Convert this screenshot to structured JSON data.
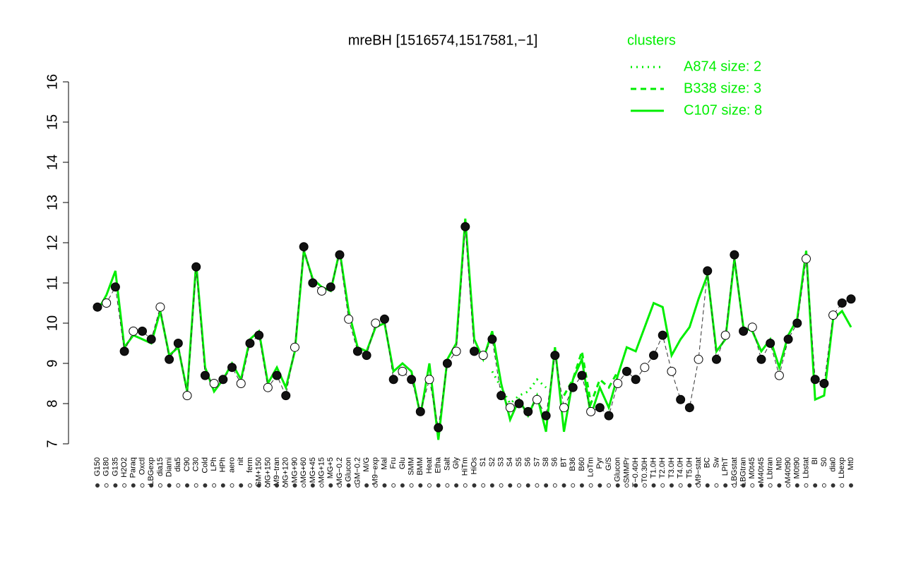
{
  "chart_data": {
    "type": "line",
    "title": "mreBH [1516574,1517581,−1]",
    "legend_title": "clusters",
    "categories": [
      "G150",
      "G180",
      "G135",
      "H2O2",
      "Paraq",
      "Oxctl",
      "LBGexp",
      "dia15",
      "Diami",
      "dia5",
      "C90",
      "C30",
      "Cold",
      "LPh",
      "HPh",
      "aero",
      "nit",
      "ferm",
      "GM+150",
      "MG+150",
      "M9−tran",
      "MG+120",
      "MG+90",
      "MG+60",
      "MG+45",
      "MG+15",
      "MG+5",
      "MG−0.2",
      "Glucon",
      "GM−0.2",
      "M/G",
      "M9−exp",
      "Mal",
      "Fru",
      "Glu",
      "SMM",
      "BMM",
      "Heat",
      "Etha",
      "Salt",
      "Gly",
      "HiTm",
      "HiOs",
      "S1",
      "S2",
      "S3",
      "S4",
      "S5",
      "S6",
      "S7",
      "S8",
      "S6",
      "BT",
      "B36",
      "B60",
      "LoTm",
      "Pyr",
      "G/S",
      "Glucon",
      "SMMPr",
      "T−0.40H",
      "T0.30H",
      "T1.0H",
      "T2.0H",
      "T3.0H",
      "T4.0H",
      "T5.0H",
      "M9−stat",
      "BC",
      "Sw",
      "LPhT",
      "LBGstat",
      "LBGtran",
      "M0t45",
      "M40t45",
      "Lbtran",
      "Mt0",
      "M40t90",
      "M0t90",
      "Lbstat",
      "BI",
      "S0",
      "dia0",
      "Lbexp",
      "Mt0"
    ],
    "values": [
      10.4,
      10.5,
      10.9,
      9.3,
      9.8,
      9.8,
      9.6,
      10.4,
      9.1,
      9.5,
      8.2,
      11.4,
      8.7,
      8.5,
      8.6,
      8.9,
      8.5,
      9.5,
      9.7,
      8.4,
      8.7,
      8.2,
      9.4,
      11.9,
      11.0,
      10.8,
      10.9,
      11.7,
      10.1,
      9.3,
      9.2,
      10.0,
      10.1,
      8.6,
      8.8,
      8.6,
      7.8,
      8.6,
      7.4,
      9.0,
      9.3,
      12.4,
      9.3,
      9.2,
      9.6,
      8.2,
      7.9,
      8.0,
      7.8,
      8.1,
      7.7,
      9.2,
      7.9,
      8.4,
      8.7,
      7.8,
      7.9,
      7.7,
      8.5,
      8.8,
      8.6,
      8.9,
      9.2,
      9.7,
      8.8,
      8.1,
      7.9,
      9.1,
      11.3,
      9.1,
      9.7,
      11.7,
      9.8,
      9.9,
      9.1,
      9.5,
      8.7,
      9.6,
      10.0,
      11.6,
      8.6,
      8.5,
      10.2,
      10.5,
      10.6
    ],
    "series": [
      {
        "name": "A874 size: 2",
        "color": "#00ee00",
        "dash": "dotted",
        "values": [
          null,
          null,
          null,
          null,
          null,
          null,
          null,
          null,
          null,
          null,
          null,
          null,
          null,
          null,
          null,
          null,
          null,
          null,
          null,
          null,
          null,
          null,
          null,
          null,
          null,
          null,
          null,
          null,
          null,
          null,
          null,
          null,
          null,
          null,
          null,
          null,
          null,
          null,
          null,
          null,
          null,
          null,
          null,
          null,
          8.8,
          8.4,
          8.0,
          8.2,
          8.3,
          8.6,
          8.4,
          null,
          null,
          null,
          null,
          null,
          null,
          null,
          null,
          null,
          null,
          null,
          null,
          null,
          null,
          null,
          null,
          null,
          null,
          null,
          null,
          null,
          null,
          null,
          null,
          null,
          null,
          null,
          null,
          null,
          null,
          null,
          null,
          null,
          null
        ]
      },
      {
        "name": "B338 size: 3",
        "color": "#00ee00",
        "dash": "dashed",
        "values": [
          null,
          null,
          null,
          null,
          null,
          null,
          null,
          null,
          null,
          null,
          null,
          null,
          null,
          null,
          null,
          null,
          null,
          null,
          null,
          null,
          null,
          null,
          null,
          null,
          null,
          null,
          null,
          null,
          null,
          null,
          null,
          null,
          null,
          null,
          null,
          null,
          null,
          null,
          null,
          null,
          null,
          null,
          null,
          null,
          null,
          null,
          null,
          null,
          null,
          null,
          null,
          null,
          8.2,
          8.6,
          9.3,
          8.0,
          8.6,
          8.4,
          8.8,
          null,
          null,
          null,
          null,
          null,
          null,
          null,
          null,
          null,
          null,
          null,
          null,
          null,
          null,
          null,
          null,
          null,
          null,
          null,
          null,
          null,
          null,
          null,
          null,
          null,
          null
        ]
      },
      {
        "name": "C107 size: 8",
        "color": "#00ee00",
        "dash": "solid",
        "values": [
          10.3,
          10.7,
          11.3,
          9.4,
          9.7,
          9.6,
          9.5,
          10.3,
          9.2,
          9.4,
          8.3,
          11.5,
          8.9,
          8.3,
          8.6,
          9.0,
          8.6,
          9.6,
          9.8,
          8.5,
          8.9,
          8.4,
          9.3,
          11.8,
          11.1,
          10.9,
          10.8,
          11.8,
          10.3,
          9.4,
          9.3,
          9.9,
          10.0,
          8.8,
          9.0,
          8.8,
          7.7,
          9.0,
          7.1,
          9.1,
          9.5,
          12.6,
          9.6,
          9.1,
          9.8,
          8.5,
          7.6,
          8.1,
          7.7,
          8.2,
          7.3,
          9.4,
          7.3,
          8.6,
          9.1,
          7.7,
          8.4,
          7.9,
          8.7,
          9.4,
          9.3,
          9.9,
          10.5,
          10.4,
          9.2,
          9.6,
          9.9,
          10.6,
          11.2,
          9.3,
          9.6,
          11.6,
          9.9,
          9.8,
          9.3,
          9.6,
          8.9,
          9.7,
          10.1,
          11.8,
          8.1,
          8.2,
          10.1,
          10.3,
          9.9
        ]
      }
    ],
    "ylim": [
      7,
      16
    ],
    "yticks": [
      7,
      8,
      9,
      10,
      11,
      12,
      13,
      14,
      15,
      16
    ]
  }
}
